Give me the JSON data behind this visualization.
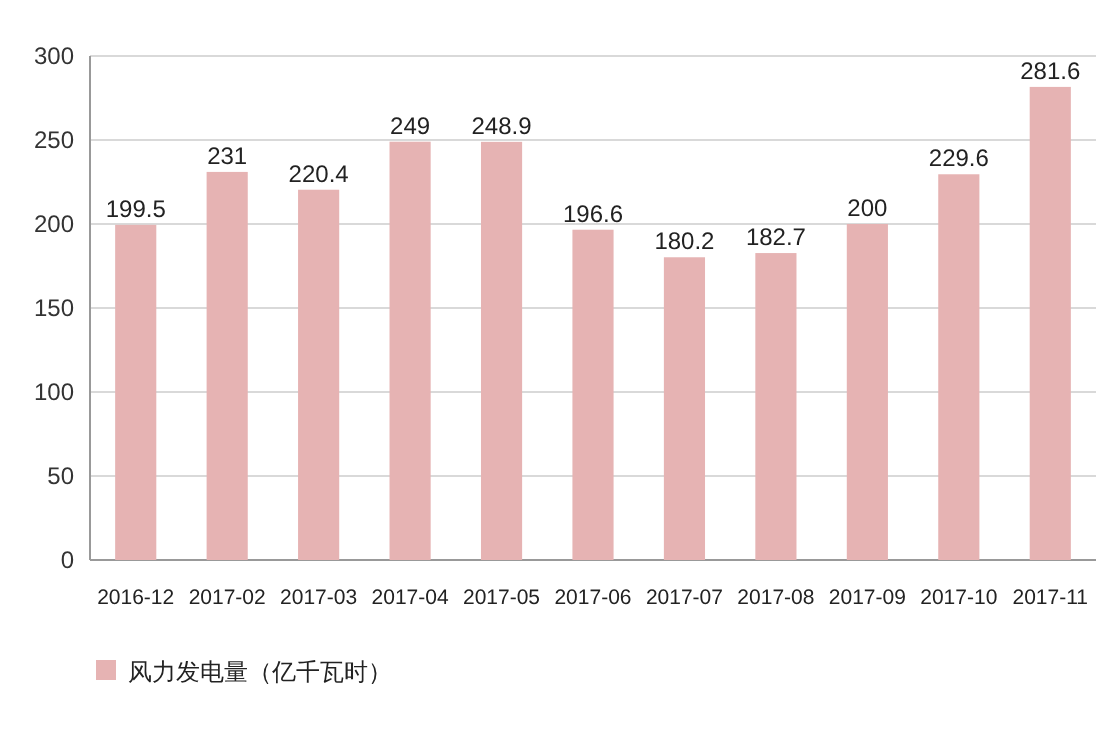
{
  "chart_data": {
    "type": "bar",
    "categories": [
      "2016-12",
      "2017-02",
      "2017-03",
      "2017-04",
      "2017-05",
      "2017-06",
      "2017-07",
      "2017-08",
      "2017-09",
      "2017-10",
      "2017-11"
    ],
    "series": [
      {
        "name": "风力发电量（亿千瓦时）",
        "color": "#e6b3b3",
        "values": [
          199.5,
          231,
          220.4,
          249,
          248.9,
          196.6,
          180.2,
          182.7,
          200,
          229.6,
          281.6
        ]
      }
    ],
    "ylim": [
      0,
      300
    ],
    "yticks": [
      0,
      50,
      100,
      150,
      200,
      250,
      300
    ],
    "grid": "y",
    "legend": "bottom",
    "data_labels": true
  }
}
